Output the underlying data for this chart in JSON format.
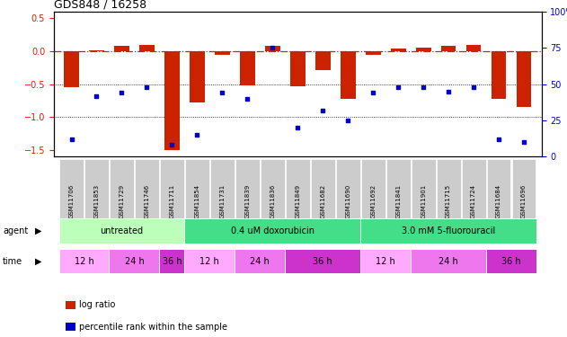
{
  "title": "GDS848 / 16258",
  "samples": [
    "GSM11706",
    "GSM11853",
    "GSM11729",
    "GSM11746",
    "GSM11711",
    "GSM11854",
    "GSM11731",
    "GSM11839",
    "GSM11836",
    "GSM11849",
    "GSM11682",
    "GSM11690",
    "GSM11692",
    "GSM11841",
    "GSM11901",
    "GSM11715",
    "GSM11724",
    "GSM11684",
    "GSM11696"
  ],
  "log_ratio": [
    -0.55,
    0.02,
    0.08,
    0.1,
    -1.5,
    -0.78,
    -0.05,
    -0.52,
    0.08,
    -0.53,
    -0.28,
    -0.72,
    -0.05,
    0.04,
    0.05,
    0.08,
    0.1,
    -0.72,
    -0.85
  ],
  "percentile": [
    12,
    42,
    44,
    48,
    8,
    15,
    44,
    40,
    75,
    20,
    32,
    25,
    44,
    48,
    48,
    45,
    48,
    12,
    10
  ],
  "agent_groups": [
    {
      "label": "untreated",
      "start": 0,
      "end": 5,
      "color": "#bbffbb"
    },
    {
      "label": "0.4 uM doxorubicin",
      "start": 5,
      "end": 12,
      "color": "#44dd88"
    },
    {
      "label": "3.0 mM 5-fluorouracil",
      "start": 12,
      "end": 19,
      "color": "#44dd88"
    }
  ],
  "time_groups": [
    {
      "label": "12 h",
      "start": 0,
      "end": 2,
      "color": "#ffaaff"
    },
    {
      "label": "24 h",
      "start": 2,
      "end": 4,
      "color": "#ee77ee"
    },
    {
      "label": "36 h",
      "start": 4,
      "end": 5,
      "color": "#cc33cc"
    },
    {
      "label": "12 h",
      "start": 5,
      "end": 7,
      "color": "#ffaaff"
    },
    {
      "label": "24 h",
      "start": 7,
      "end": 9,
      "color": "#ee77ee"
    },
    {
      "label": "36 h",
      "start": 9,
      "end": 12,
      "color": "#cc33cc"
    },
    {
      "label": "12 h",
      "start": 12,
      "end": 14,
      "color": "#ffaaff"
    },
    {
      "label": "24 h",
      "start": 14,
      "end": 17,
      "color": "#ee77ee"
    },
    {
      "label": "36 h",
      "start": 17,
      "end": 19,
      "color": "#cc33cc"
    }
  ],
  "ylim_left": [
    -1.6,
    0.6
  ],
  "ylim_right": [
    0,
    100
  ],
  "bar_color": "#cc2200",
  "dot_color": "#0000cc",
  "ref_line_color": "#cc2200",
  "legend_bar_label": "log ratio",
  "legend_dot_label": "percentile rank within the sample",
  "xlabel_bg": "#cccccc",
  "label_arrow_color": "#555555"
}
